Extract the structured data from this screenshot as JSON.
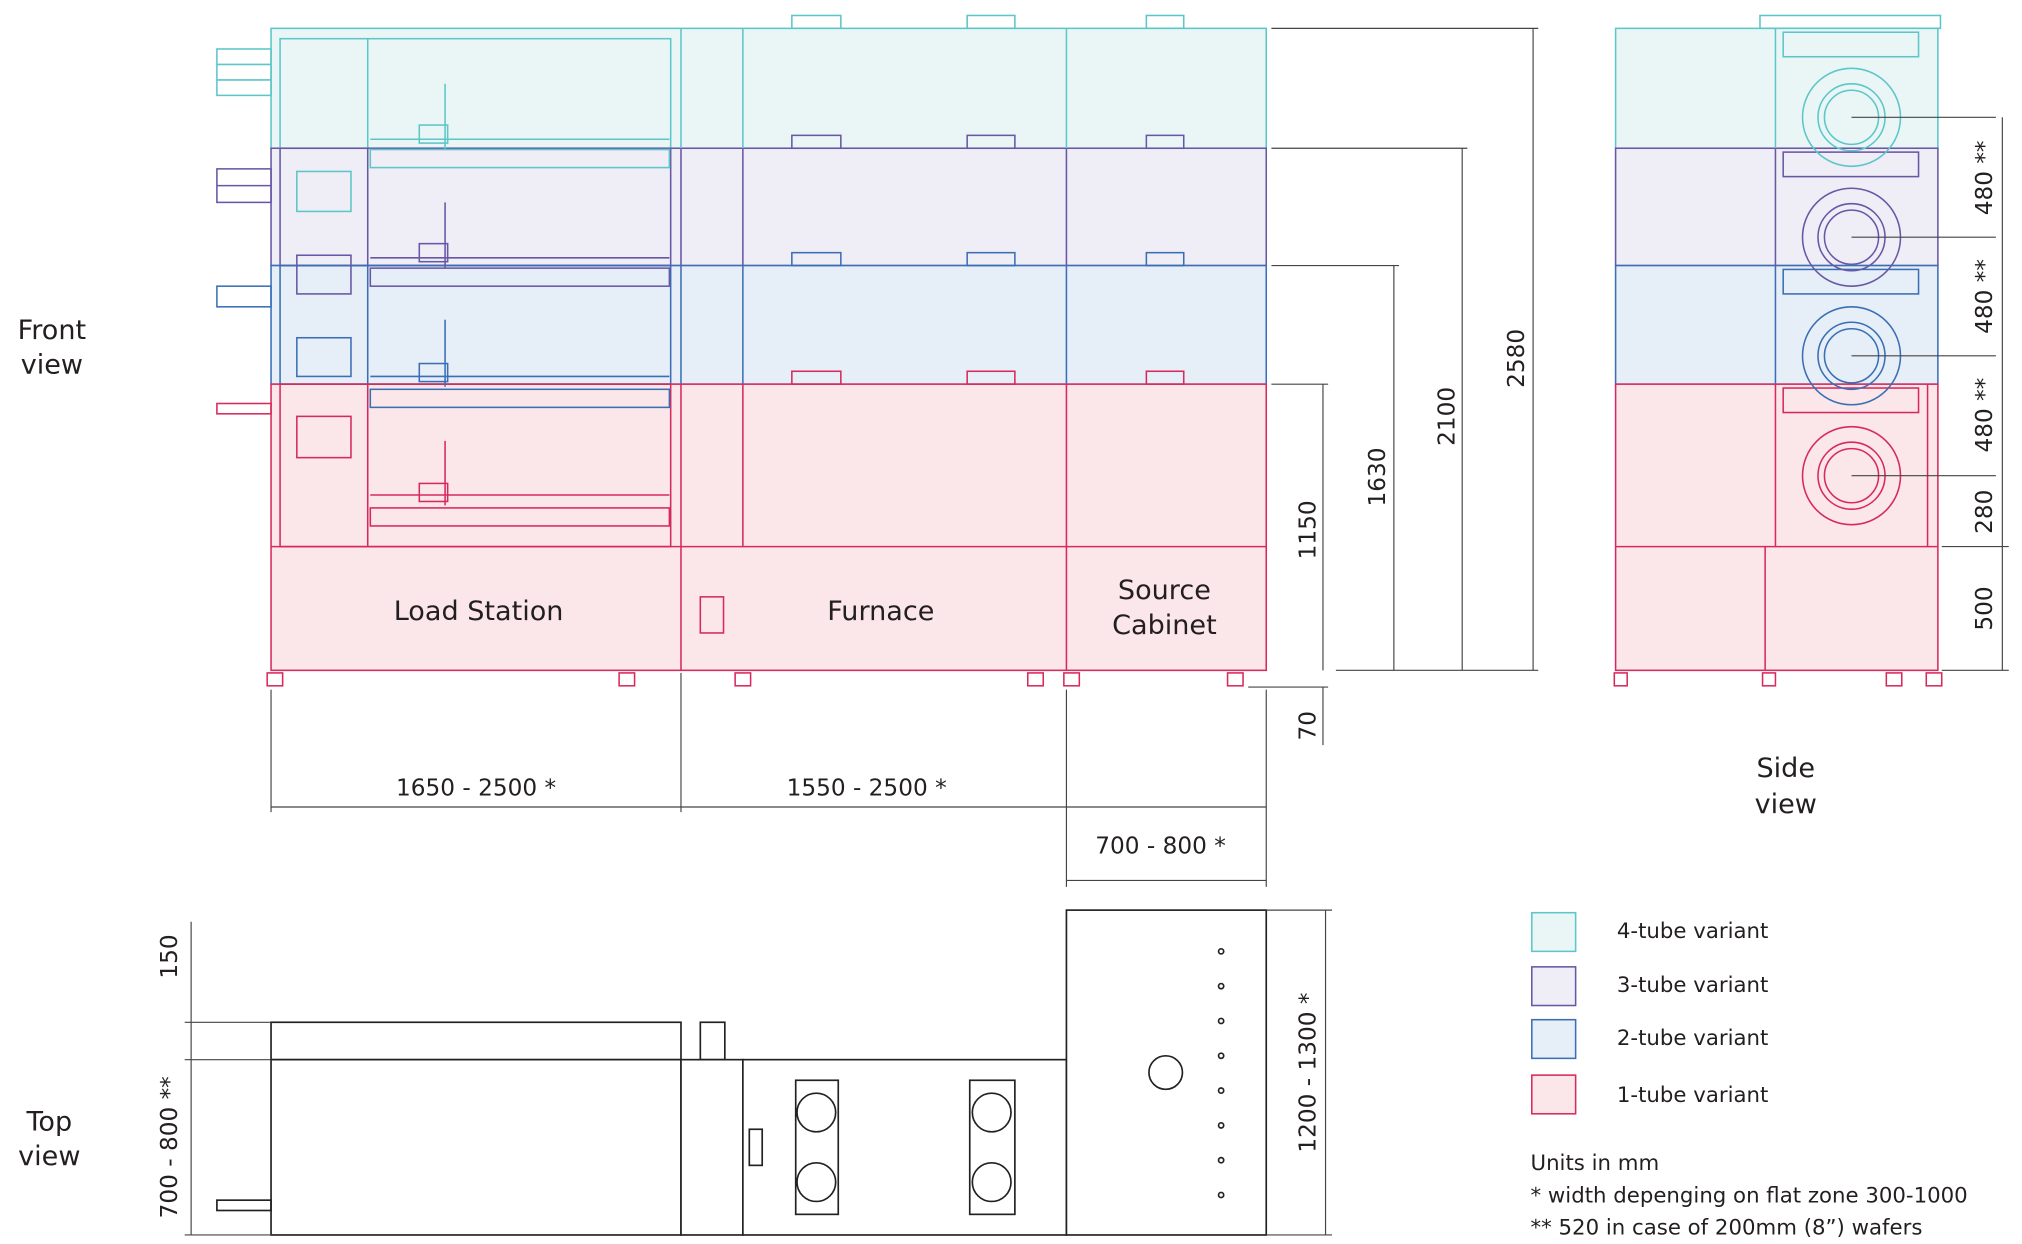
{
  "views": {
    "front": [
      "Front",
      "view"
    ],
    "side": [
      "Side",
      "view"
    ],
    "top": [
      "Top",
      "view"
    ]
  },
  "sections": {
    "load_station": "Load Station",
    "furnace": "Furnace",
    "source_cabinet": [
      "Source",
      "Cabinet"
    ]
  },
  "front_dimensions": {
    "heights": [
      "2580",
      "2100",
      "1630",
      "1150",
      "70"
    ],
    "widths": [
      "1650 - 2500 *",
      "1550 - 2500 *",
      "700 - 800 *"
    ]
  },
  "side_dimensions": [
    "480 **",
    "480 **",
    "480 **",
    "280",
    "500"
  ],
  "top_dimensions": [
    "150",
    "700 - 800 **",
    "1200 - 1300 *"
  ],
  "legend": [
    "4-tube variant",
    "3-tube variant",
    "2-tube variant",
    "1-tube variant"
  ],
  "notes": [
    "Units in mm",
    "* width depenging on flat zone 300-1000",
    "** 520 in case of 200mm (8”) wafers"
  ]
}
